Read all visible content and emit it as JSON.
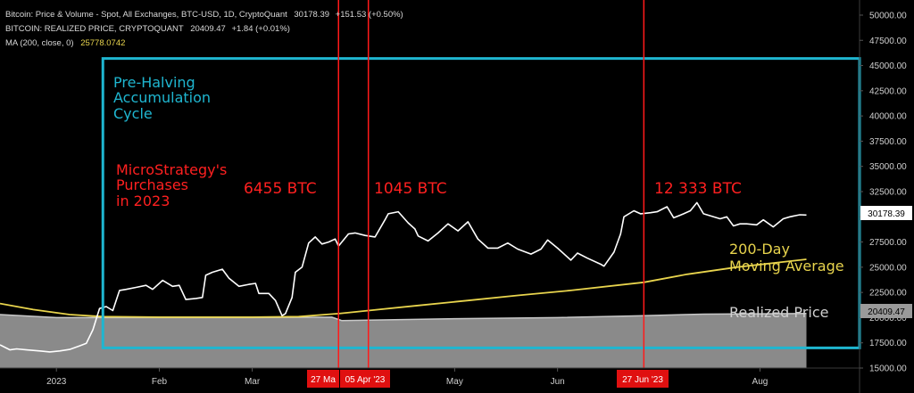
{
  "header": {
    "line1": {
      "label": "Bitcoin: Price & Volume - Spot, All Exchanges, BTC-USD, 1D, CryptoQuant",
      "value": "30178.39",
      "change": "+151.53 (+0.50%)"
    },
    "line2": {
      "label": "BITCOIN: REALIZED PRICE, CRYPTOQUANT",
      "value": "20409.47",
      "change": "+1.84 (+0.01%)"
    },
    "line3": {
      "label": "MA (200, close, 0)",
      "value": "25778.0742"
    }
  },
  "annotations": {
    "cycle_title": [
      "Pre-Halving",
      "Accumulation",
      "Cycle"
    ],
    "purchases_title": [
      "MicroStrategy's",
      "Purchases",
      "in 2023"
    ],
    "purchase_1": "6455 BTC",
    "purchase_2": "1045 BTC",
    "purchase_3": "12 333 BTC",
    "ma_label": [
      "200-Day",
      "Moving Average"
    ],
    "realized_label": "Realized Price"
  },
  "price_badges": {
    "price": "30178.39",
    "realized": "20409.47"
  },
  "date_badges": [
    "27 Ma",
    "05 Apr '23",
    "27 Jun '23"
  ],
  "colors": {
    "background": "#000000",
    "price": "#ffffff",
    "ma": "#e8d44d",
    "realized_fill": "#8a8a8a",
    "realized_line": "#c8c8c8",
    "cycle_box": "#1fb6d0",
    "purchase": "#ff1a1a",
    "annotation_text_cycle": "#1fb6d0",
    "annotation_text_purchase": "#ff2020",
    "annotation_text_ma": "#e8d44d",
    "annotation_text_realized": "#d0d0d0"
  },
  "chart_data": {
    "type": "line",
    "xlabel": "",
    "ylabel": "",
    "x_range": [
      "2022-12-15",
      "2023-08-31"
    ],
    "ylim": [
      15000,
      51500
    ],
    "y_ticks": [
      15000,
      17500,
      20000,
      22500,
      25000,
      27500,
      30000,
      32500,
      35000,
      37500,
      40000,
      42500,
      45000,
      47500,
      50000
    ],
    "y_tick_labels": [
      "15000.00",
      "17500.00",
      "20000.00",
      "22500.00",
      "25000.00",
      "27500.00",
      "30000.00",
      "32500.00",
      "35000.00",
      "37500.00",
      "40000.00",
      "42500.00",
      "45000.00",
      "47500.00",
      "50000.00"
    ],
    "x_ticks": [
      {
        "date": "2023-01-01",
        "label": "2023"
      },
      {
        "date": "2023-02-01",
        "label": "Feb"
      },
      {
        "date": "2023-03-01",
        "label": "Mar"
      },
      {
        "date": "2023-05-01",
        "label": "May"
      },
      {
        "date": "2023-06-01",
        "label": "Jun"
      },
      {
        "date": "2023-08-01",
        "label": "Aug"
      }
    ],
    "grid": false,
    "series": [
      {
        "key": "price",
        "points": [
          [
            "2022-12-15",
            17300
          ],
          [
            "2022-12-18",
            16800
          ],
          [
            "2022-12-20",
            16900
          ],
          [
            "2022-12-23",
            16800
          ],
          [
            "2022-12-27",
            16700
          ],
          [
            "2022-12-30",
            16600
          ],
          [
            "2023-01-02",
            16700
          ],
          [
            "2023-01-05",
            16850
          ],
          [
            "2023-01-08",
            17200
          ],
          [
            "2023-01-10",
            17450
          ],
          [
            "2023-01-12",
            18800
          ],
          [
            "2023-01-14",
            20900
          ],
          [
            "2023-01-16",
            21100
          ],
          [
            "2023-01-18",
            20700
          ],
          [
            "2023-01-20",
            22700
          ],
          [
            "2023-01-22",
            22800
          ],
          [
            "2023-01-25",
            23000
          ],
          [
            "2023-01-28",
            23200
          ],
          [
            "2023-01-30",
            22800
          ],
          [
            "2023-02-02",
            23700
          ],
          [
            "2023-02-05",
            23100
          ],
          [
            "2023-02-07",
            23200
          ],
          [
            "2023-02-09",
            21800
          ],
          [
            "2023-02-12",
            21900
          ],
          [
            "2023-02-14",
            22000
          ],
          [
            "2023-02-15",
            24200
          ],
          [
            "2023-02-17",
            24500
          ],
          [
            "2023-02-20",
            24800
          ],
          [
            "2023-02-22",
            23900
          ],
          [
            "2023-02-25",
            23100
          ],
          [
            "2023-02-28",
            23300
          ],
          [
            "2023-03-02",
            23400
          ],
          [
            "2023-03-03",
            22400
          ],
          [
            "2023-03-06",
            22400
          ],
          [
            "2023-03-08",
            21700
          ],
          [
            "2023-03-10",
            20200
          ],
          [
            "2023-03-11",
            20400
          ],
          [
            "2023-03-13",
            22000
          ],
          [
            "2023-03-14",
            24500
          ],
          [
            "2023-03-16",
            25000
          ],
          [
            "2023-03-18",
            27400
          ],
          [
            "2023-03-20",
            28000
          ],
          [
            "2023-03-22",
            27300
          ],
          [
            "2023-03-24",
            27500
          ],
          [
            "2023-03-26",
            27800
          ],
          [
            "2023-03-27",
            27100
          ],
          [
            "2023-03-30",
            28300
          ],
          [
            "2023-04-01",
            28400
          ],
          [
            "2023-04-04",
            28150
          ],
          [
            "2023-04-07",
            28000
          ],
          [
            "2023-04-10",
            29700
          ],
          [
            "2023-04-11",
            30300
          ],
          [
            "2023-04-14",
            30500
          ],
          [
            "2023-04-17",
            29400
          ],
          [
            "2023-04-19",
            28800
          ],
          [
            "2023-04-20",
            28100
          ],
          [
            "2023-04-23",
            27600
          ],
          [
            "2023-04-26",
            28400
          ],
          [
            "2023-04-29",
            29300
          ],
          [
            "2023-05-02",
            28600
          ],
          [
            "2023-05-05",
            29500
          ],
          [
            "2023-05-08",
            27800
          ],
          [
            "2023-05-11",
            26900
          ],
          [
            "2023-05-14",
            26900
          ],
          [
            "2023-05-17",
            27400
          ],
          [
            "2023-05-20",
            26800
          ],
          [
            "2023-05-24",
            26300
          ],
          [
            "2023-05-27",
            26800
          ],
          [
            "2023-05-29",
            27700
          ],
          [
            "2023-06-01",
            26900
          ],
          [
            "2023-06-05",
            25700
          ],
          [
            "2023-06-07",
            26400
          ],
          [
            "2023-06-10",
            25900
          ],
          [
            "2023-06-14",
            25300
          ],
          [
            "2023-06-15",
            25100
          ],
          [
            "2023-06-18",
            26500
          ],
          [
            "2023-06-20",
            28300
          ],
          [
            "2023-06-21",
            30000
          ],
          [
            "2023-06-24",
            30600
          ],
          [
            "2023-06-26",
            30300
          ],
          [
            "2023-06-29",
            30400
          ],
          [
            "2023-07-01",
            30500
          ],
          [
            "2023-07-04",
            31000
          ],
          [
            "2023-07-06",
            29900
          ],
          [
            "2023-07-09",
            30300
          ],
          [
            "2023-07-11",
            30600
          ],
          [
            "2023-07-13",
            31400
          ],
          [
            "2023-07-15",
            30300
          ],
          [
            "2023-07-17",
            30100
          ],
          [
            "2023-07-20",
            29800
          ],
          [
            "2023-07-22",
            30000
          ],
          [
            "2023-07-24",
            29100
          ],
          [
            "2023-07-26",
            29300
          ],
          [
            "2023-07-28",
            29300
          ],
          [
            "2023-07-31",
            29200
          ],
          [
            "2023-08-02",
            29700
          ],
          [
            "2023-08-05",
            29000
          ],
          [
            "2023-08-08",
            29800
          ],
          [
            "2023-08-10",
            30000
          ],
          [
            "2023-08-13",
            30200
          ],
          [
            "2023-08-15",
            30178
          ]
        ]
      },
      {
        "key": "ma200",
        "points": [
          [
            "2022-12-15",
            21400
          ],
          [
            "2022-12-25",
            20800
          ],
          [
            "2023-01-05",
            20300
          ],
          [
            "2023-01-15",
            20100
          ],
          [
            "2023-02-01",
            20050
          ],
          [
            "2023-02-15",
            20050
          ],
          [
            "2023-03-01",
            20050
          ],
          [
            "2023-03-15",
            20100
          ],
          [
            "2023-03-27",
            20400
          ],
          [
            "2023-04-05",
            20700
          ],
          [
            "2023-04-20",
            21200
          ],
          [
            "2023-05-05",
            21700
          ],
          [
            "2023-05-20",
            22200
          ],
          [
            "2023-06-05",
            22700
          ],
          [
            "2023-06-27",
            23500
          ],
          [
            "2023-07-10",
            24300
          ],
          [
            "2023-07-25",
            25000
          ],
          [
            "2023-08-15",
            25778
          ]
        ]
      },
      {
        "key": "realized",
        "points": [
          [
            "2022-12-15",
            20300
          ],
          [
            "2023-01-01",
            20000
          ],
          [
            "2023-02-01",
            20000
          ],
          [
            "2023-03-01",
            20000
          ],
          [
            "2023-03-25",
            20050
          ],
          [
            "2023-03-28",
            19700
          ],
          [
            "2023-04-05",
            19750
          ],
          [
            "2023-05-01",
            19900
          ],
          [
            "2023-06-01",
            20000
          ],
          [
            "2023-06-27",
            20200
          ],
          [
            "2023-07-15",
            20350
          ],
          [
            "2023-08-15",
            20409
          ]
        ]
      }
    ],
    "regions": [
      {
        "key": "cycle_box",
        "x_start": "2023-01-15",
        "x_end": "2023-08-31",
        "y_bottom": 17000,
        "y_top": 45700
      }
    ],
    "vlines": [
      "2023-03-27",
      "2023-04-05",
      "2023-06-27"
    ]
  }
}
